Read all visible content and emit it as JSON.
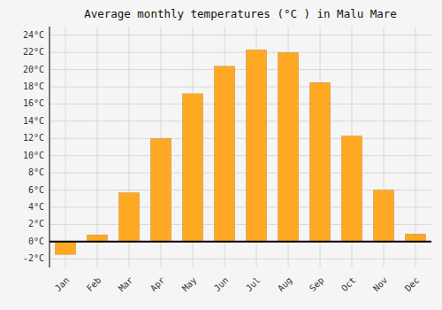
{
  "chart_data": {
    "type": "bar",
    "title": "Average monthly temperatures (°C ) in Malu Mare",
    "categories": [
      "Jan",
      "Feb",
      "Mar",
      "Apr",
      "May",
      "Jun",
      "Jul",
      "Aug",
      "Sep",
      "Oct",
      "Nov",
      "Dec"
    ],
    "values": [
      -1.5,
      0.8,
      5.7,
      12.0,
      17.2,
      20.4,
      22.3,
      22.0,
      18.5,
      12.3,
      6.0,
      0.9
    ],
    "color": "#FFA824",
    "ylim": [
      -3,
      25
    ],
    "yticks": [
      {
        "value": -2,
        "label": "-2°C"
      },
      {
        "value": 0,
        "label": "0°C"
      },
      {
        "value": 2,
        "label": "2°C"
      },
      {
        "value": 4,
        "label": "4°C"
      },
      {
        "value": 6,
        "label": "6°C"
      },
      {
        "value": 8,
        "label": "8°C"
      },
      {
        "value": 10,
        "label": "10°C"
      },
      {
        "value": 12,
        "label": "12°C"
      },
      {
        "value": 14,
        "label": "14°C"
      },
      {
        "value": 16,
        "label": "16°C"
      },
      {
        "value": 18,
        "label": "18°C"
      },
      {
        "value": 20,
        "label": "20°C"
      },
      {
        "value": 22,
        "label": "22°C"
      },
      {
        "value": 24,
        "label": "24°C"
      }
    ],
    "grid": true
  }
}
